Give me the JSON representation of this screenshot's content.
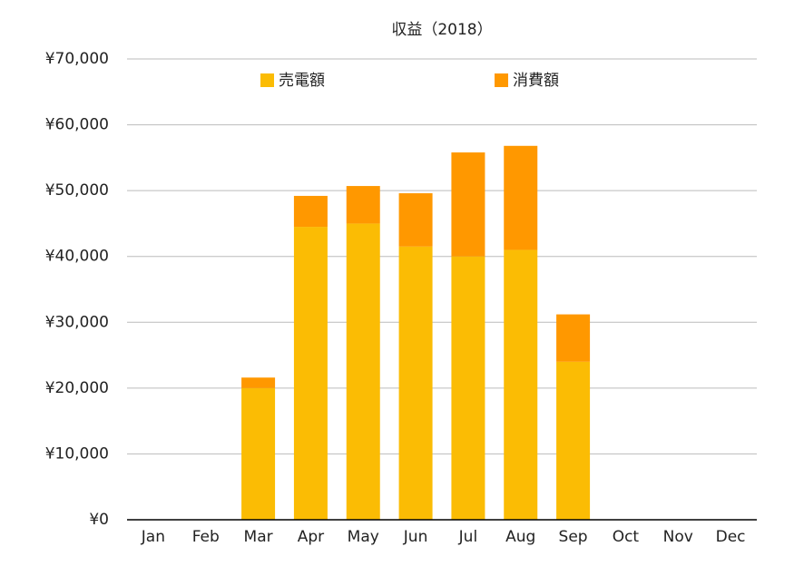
{
  "chart_data": {
    "type": "stacked_bar",
    "title": "収益（2018）",
    "categories": [
      "Jan",
      "Feb",
      "Mar",
      "Apr",
      "May",
      "Jun",
      "Jul",
      "Aug",
      "Sep",
      "Oct",
      "Nov",
      "Dec"
    ],
    "series": [
      {
        "name": "売電額",
        "color": "#fbbc04",
        "values": [
          null,
          null,
          20000,
          44500,
          45000,
          41500,
          40000,
          41000,
          24000,
          null,
          null,
          null
        ]
      },
      {
        "name": "消費額",
        "color": "#ff9800",
        "values": [
          null,
          null,
          1600,
          4700,
          5700,
          8100,
          15800,
          15800,
          7200,
          null,
          null,
          null
        ]
      }
    ],
    "ylim": [
      0,
      70000
    ],
    "yticks": [
      {
        "value": 0,
        "label": "¥0"
      },
      {
        "value": 10000,
        "label": "¥10,000"
      },
      {
        "value": 20000,
        "label": "¥20,000"
      },
      {
        "value": 30000,
        "label": "¥30,000"
      },
      {
        "value": 40000,
        "label": "¥40,000"
      },
      {
        "value": 50000,
        "label": "¥50,000"
      },
      {
        "value": 60000,
        "label": "¥60,000"
      },
      {
        "value": 70000,
        "label": "¥70,000"
      }
    ],
    "grid": true,
    "legend": "top"
  }
}
